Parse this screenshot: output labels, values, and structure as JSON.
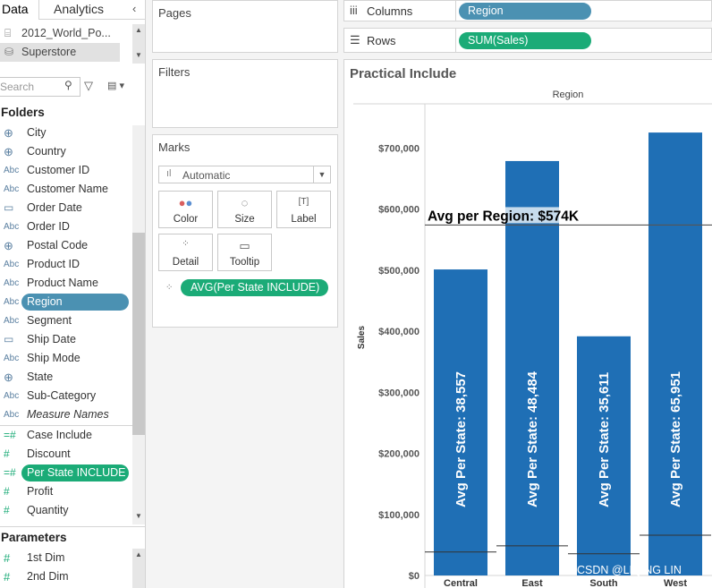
{
  "left_pane": {
    "tabs": [
      {
        "label": "Data"
      },
      {
        "label": "Analytics"
      }
    ],
    "collapse_arrow": "‹",
    "datasources": [
      {
        "label": "2012_World_Po..."
      },
      {
        "label": "Superstore"
      }
    ],
    "search": {
      "placeholder": "Search"
    },
    "folders_heading": "Folders",
    "fields": [
      {
        "type": "geo",
        "label": "City"
      },
      {
        "type": "geo",
        "label": "Country"
      },
      {
        "type": "abc",
        "label": "Customer ID"
      },
      {
        "type": "abc",
        "label": "Customer Name"
      },
      {
        "type": "date",
        "label": "Order Date"
      },
      {
        "type": "abc",
        "label": "Order ID"
      },
      {
        "type": "geo",
        "label": "Postal Code"
      },
      {
        "type": "abc",
        "label": "Product ID"
      },
      {
        "type": "abc",
        "label": "Product Name"
      },
      {
        "type": "abc",
        "label": "Region"
      },
      {
        "type": "abc",
        "label": "Segment"
      },
      {
        "type": "date",
        "label": "Ship Date"
      },
      {
        "type": "abc",
        "label": "Ship Mode"
      },
      {
        "type": "geo",
        "label": "State"
      },
      {
        "type": "abc",
        "label": "Sub-Category"
      },
      {
        "type": "abc",
        "label": "Measure Names"
      },
      {
        "type": "calc",
        "label": "Case Include"
      },
      {
        "type": "num",
        "label": "Discount"
      },
      {
        "type": "calc",
        "label": "Per State INCLUDE"
      },
      {
        "type": "num",
        "label": "Profit"
      },
      {
        "type": "num",
        "label": "Quantity"
      }
    ],
    "parameters_heading": "Parameters",
    "parameters": [
      {
        "label": "1st Dim"
      },
      {
        "label": "2nd Dim"
      }
    ],
    "icon_text": {
      "abc": "Abc",
      "geo": "⊕",
      "date": "▭",
      "num": "#",
      "calc": "=#"
    }
  },
  "cards": {
    "pages": "Pages",
    "filters": "Filters",
    "marks": "Marks",
    "mark_type": "Automatic",
    "buttons": [
      {
        "label": "Color",
        "icon": "palette-icon"
      },
      {
        "label": "Size",
        "icon": "size-icon"
      },
      {
        "label": "Label",
        "icon": "label-icon"
      },
      {
        "label": "Detail",
        "icon": "detail-icon"
      },
      {
        "label": "Tooltip",
        "icon": "tooltip-icon"
      }
    ],
    "detail_pill": "AVG(Per State INCLUDE)"
  },
  "shelves": {
    "columns_label": "Columns",
    "columns_pill": "Region",
    "rows_label": "Rows",
    "rows_pill": "SUM(Sales)"
  },
  "viz": {
    "title": "Practical Include"
  },
  "chart_data": {
    "type": "bar",
    "header": "Region",
    "categories": [
      "Central",
      "East",
      "South",
      "West"
    ],
    "values": [
      501240,
      678781,
      391722,
      725458
    ],
    "ylabel": "Sales",
    "ylim": [
      0,
      740000
    ],
    "yticks": [
      0,
      100000,
      200000,
      300000,
      400000,
      500000,
      600000,
      700000
    ],
    "ytick_labels": [
      "$0",
      "$100,000",
      "$200,000",
      "$300,000",
      "$400,000",
      "$500,000",
      "$600,000",
      "$700,000"
    ],
    "bar_labels": [
      "Avg Per State: 38,557",
      "Avg Per State: 48,484",
      "Avg Per State: 35,611",
      "Avg Per State: 65,951"
    ],
    "per_state_avg": [
      38557,
      48484,
      35611,
      65951
    ],
    "reference_line": {
      "value": 574000,
      "label": "Avg per Region: $574K"
    },
    "bar_color": "#1f6fb5",
    "grid": false
  },
  "watermark": "CSDN @LIQING LIN"
}
